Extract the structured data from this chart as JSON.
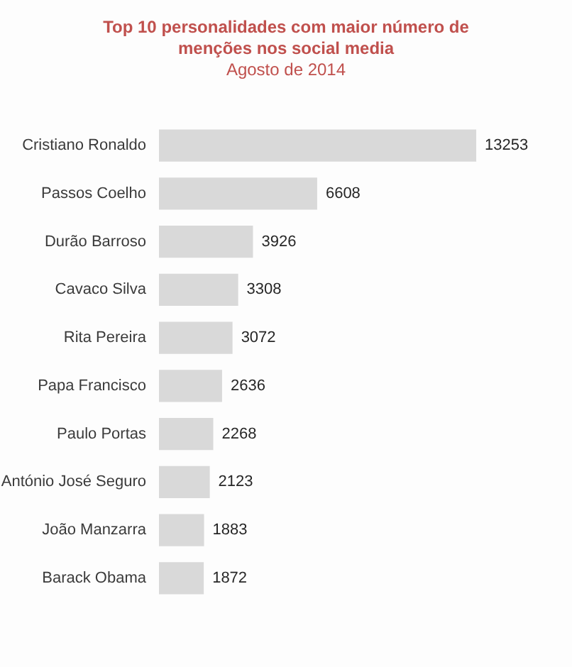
{
  "chart_data": {
    "type": "bar",
    "orientation": "horizontal",
    "title": "Top 10 personalidades com maior número de menções nos social media",
    "subtitle": "Agosto de 2014",
    "categories": [
      "Cristiano Ronaldo",
      "Passos Coelho",
      "Durão Barroso",
      "Cavaco Silva",
      "Rita Pereira",
      "Papa Francisco",
      "Paulo Portas",
      "António José Seguro",
      "João Manzarra",
      "Barack Obama"
    ],
    "values": [
      13253,
      6608,
      3926,
      3308,
      3072,
      2636,
      2268,
      2123,
      1883,
      1872
    ],
    "color": "#d9d9d9",
    "data_labels": true,
    "tick_labels": "y"
  }
}
